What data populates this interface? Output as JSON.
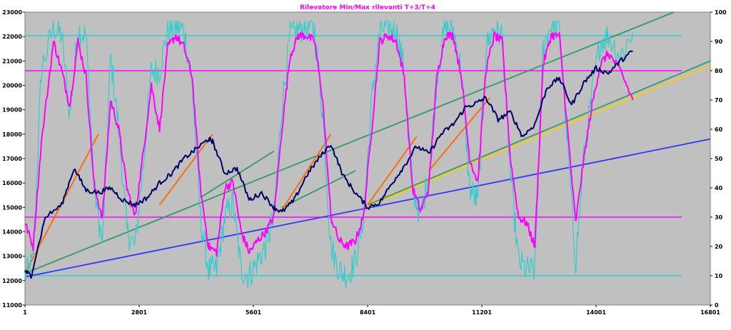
{
  "chart_data": {
    "type": "line",
    "title": "Rilevatore Min/Max rilevanti T+3/T+4",
    "x_ticks": [
      "1",
      "2801",
      "5601",
      "8401",
      "11201",
      "14001",
      "16801"
    ],
    "xlim": [
      1,
      16801
    ],
    "y_left": {
      "lim": [
        11000,
        23000
      ],
      "ticks": [
        "11000",
        "12000",
        "13000",
        "14000",
        "15000",
        "16000",
        "17000",
        "18000",
        "19000",
        "20000",
        "21000",
        "22000",
        "23000"
      ]
    },
    "y_right": {
      "lim": [
        0,
        100
      ],
      "ticks": [
        "0",
        "10",
        "20",
        "30",
        "40",
        "50",
        "60",
        "70",
        "80",
        "90",
        "100"
      ]
    },
    "grid": false,
    "plot_background": "#c0c0c0",
    "title_color": "#ff00ff",
    "colors": {
      "price": "#000066",
      "oscillator_slow": "#ff00ff",
      "oscillator_fast": "#33cccc",
      "trend_green": "#339966",
      "trend_orange": "#ff6600",
      "trend_blue": "#3333ff",
      "trend_yellow": "#ffcc00"
    },
    "hlines": [
      {
        "axis": "right",
        "value": 92,
        "color": "#33cccc"
      },
      {
        "axis": "right",
        "value": 80,
        "color": "#ff00ff"
      },
      {
        "axis": "right",
        "value": 30,
        "color": "#ff00ff"
      },
      {
        "axis": "right",
        "value": 10,
        "color": "#33cccc"
      }
    ],
    "series": [
      {
        "axis": "left",
        "color": "#000066",
        "noise": 100,
        "x": [
          1,
          150,
          500,
          900,
          1200,
          1500,
          1800,
          2100,
          2400,
          2700,
          3000,
          3300,
          3600,
          3900,
          4200,
          4500,
          4600,
          4900,
          5200,
          5500,
          5800,
          6100,
          6300,
          6600,
          6900,
          7200,
          7500,
          7800,
          8100,
          8400,
          8700,
          9000,
          9300,
          9600,
          9900,
          10200,
          10500,
          10800,
          11100,
          11300,
          11600,
          11900,
          12200,
          12500,
          12800,
          13100,
          13400,
          13700,
          14000,
          14300,
          14600,
          14900
        ],
        "y": [
          12400,
          12200,
          14600,
          15100,
          16600,
          15700,
          15600,
          15800,
          15300,
          15100,
          15400,
          16000,
          16400,
          17000,
          17400,
          17800,
          17700,
          16400,
          16600,
          15300,
          15600,
          15000,
          14800,
          15300,
          16300,
          17000,
          17600,
          16300,
          15600,
          15000,
          15200,
          16000,
          16700,
          17500,
          17200,
          18000,
          18400,
          19100,
          19300,
          19500,
          18600,
          18900,
          17900,
          18400,
          19900,
          20300,
          19200,
          20100,
          20700,
          20500,
          21000,
          21400
        ]
      },
      {
        "axis": "right",
        "color": "#ff00ff",
        "noise": 1.5,
        "x": [
          1,
          200,
          400,
          700,
          900,
          1100,
          1300,
          1500,
          1700,
          1900,
          2100,
          2300,
          2500,
          2700,
          2900,
          3100,
          3300,
          3500,
          3700,
          3900,
          4100,
          4300,
          4500,
          4700,
          4900,
          5100,
          5300,
          5500,
          5700,
          5900,
          6100,
          6300,
          6500,
          6700,
          6900,
          7100,
          7300,
          7500,
          7700,
          7900,
          8100,
          8300,
          8500,
          8700,
          8900,
          9100,
          9300,
          9500,
          9700,
          9900,
          10100,
          10300,
          10500,
          10700,
          10900,
          11100,
          11300,
          11500,
          11700,
          11900,
          12100,
          12300,
          12500,
          12700,
          12900,
          13100,
          13300,
          13500,
          13700,
          13900,
          14100,
          14300,
          14600,
          14900
        ],
        "y": [
          28,
          20,
          55,
          90,
          80,
          68,
          90,
          78,
          40,
          30,
          70,
          60,
          40,
          30,
          52,
          75,
          60,
          88,
          92,
          88,
          78,
          40,
          20,
          18,
          40,
          42,
          25,
          18,
          22,
          25,
          30,
          60,
          85,
          92,
          92,
          90,
          70,
          30,
          22,
          20,
          22,
          30,
          60,
          90,
          92,
          90,
          78,
          40,
          32,
          40,
          78,
          92,
          92,
          78,
          50,
          42,
          80,
          92,
          90,
          50,
          30,
          28,
          20,
          82,
          92,
          92,
          60,
          28,
          50,
          68,
          82,
          86,
          80,
          70
        ]
      },
      {
        "axis": "right",
        "color": "#33cccc",
        "noise": 5,
        "x": [
          1,
          200,
          400,
          700,
          900,
          1100,
          1300,
          1500,
          1700,
          1900,
          2100,
          2300,
          2500,
          2700,
          2900,
          3100,
          3300,
          3500,
          3700,
          3900,
          4100,
          4300,
          4500,
          4700,
          4900,
          5100,
          5300,
          5500,
          5700,
          5900,
          6100,
          6300,
          6500,
          6700,
          6900,
          7100,
          7300,
          7500,
          7700,
          7900,
          8100,
          8300,
          8500,
          8700,
          8900,
          9100,
          9300,
          9500,
          9700,
          9900,
          10100,
          10300,
          10500,
          10700,
          10900,
          11100,
          11300,
          11500,
          11700,
          11900,
          12100,
          12300,
          12500,
          12700,
          12900,
          13100,
          13300,
          13500,
          13700,
          13900,
          14100,
          14300,
          14600,
          14900
        ],
        "y": [
          10,
          15,
          80,
          95,
          92,
          65,
          94,
          92,
          40,
          20,
          85,
          60,
          25,
          20,
          48,
          80,
          80,
          94,
          95,
          94,
          75,
          30,
          12,
          12,
          30,
          35,
          12,
          10,
          15,
          20,
          30,
          68,
          92,
          94,
          95,
          94,
          65,
          20,
          12,
          10,
          15,
          30,
          70,
          94,
          95,
          94,
          80,
          40,
          30,
          45,
          78,
          95,
          94,
          80,
          40,
          35,
          88,
          95,
          92,
          45,
          15,
          12,
          12,
          88,
          96,
          94,
          55,
          15,
          50,
          72,
          90,
          92,
          85,
          93
        ]
      }
    ],
    "trendlines": [
      {
        "color": "#339966",
        "x": [
          1,
          16801
        ],
        "y": [
          12300,
          23600
        ]
      },
      {
        "color": "#339966",
        "x": [
          8400,
          16801
        ],
        "y": [
          15100,
          21000
        ]
      },
      {
        "color": "#3333ff",
        "x": [
          1,
          16801
        ],
        "y": [
          12150,
          17800
        ]
      },
      {
        "color": "#ffcc00",
        "x": [
          8400,
          16801
        ],
        "y": [
          15050,
          20800
        ]
      },
      {
        "color": "#339966",
        "x": [
          6300,
          8100
        ],
        "y": [
          15000,
          16500
        ]
      },
      {
        "color": "#339966",
        "x": [
          4300,
          6100
        ],
        "y": [
          15400,
          17300
        ]
      },
      {
        "color": "#ff6600",
        "x": [
          1,
          1800
        ],
        "y": [
          12300,
          18000
        ]
      },
      {
        "color": "#ff6600",
        "x": [
          3300,
          4600
        ],
        "y": [
          15100,
          18000
        ]
      },
      {
        "color": "#ff6600",
        "x": [
          6300,
          7500
        ],
        "y": [
          14900,
          18000
        ]
      },
      {
        "color": "#ff6600",
        "x": [
          8400,
          9600
        ],
        "y": [
          15100,
          17900
        ]
      },
      {
        "color": "#ff6600",
        "x": [
          9900,
          11400
        ],
        "y": [
          16500,
          19500
        ]
      }
    ]
  }
}
